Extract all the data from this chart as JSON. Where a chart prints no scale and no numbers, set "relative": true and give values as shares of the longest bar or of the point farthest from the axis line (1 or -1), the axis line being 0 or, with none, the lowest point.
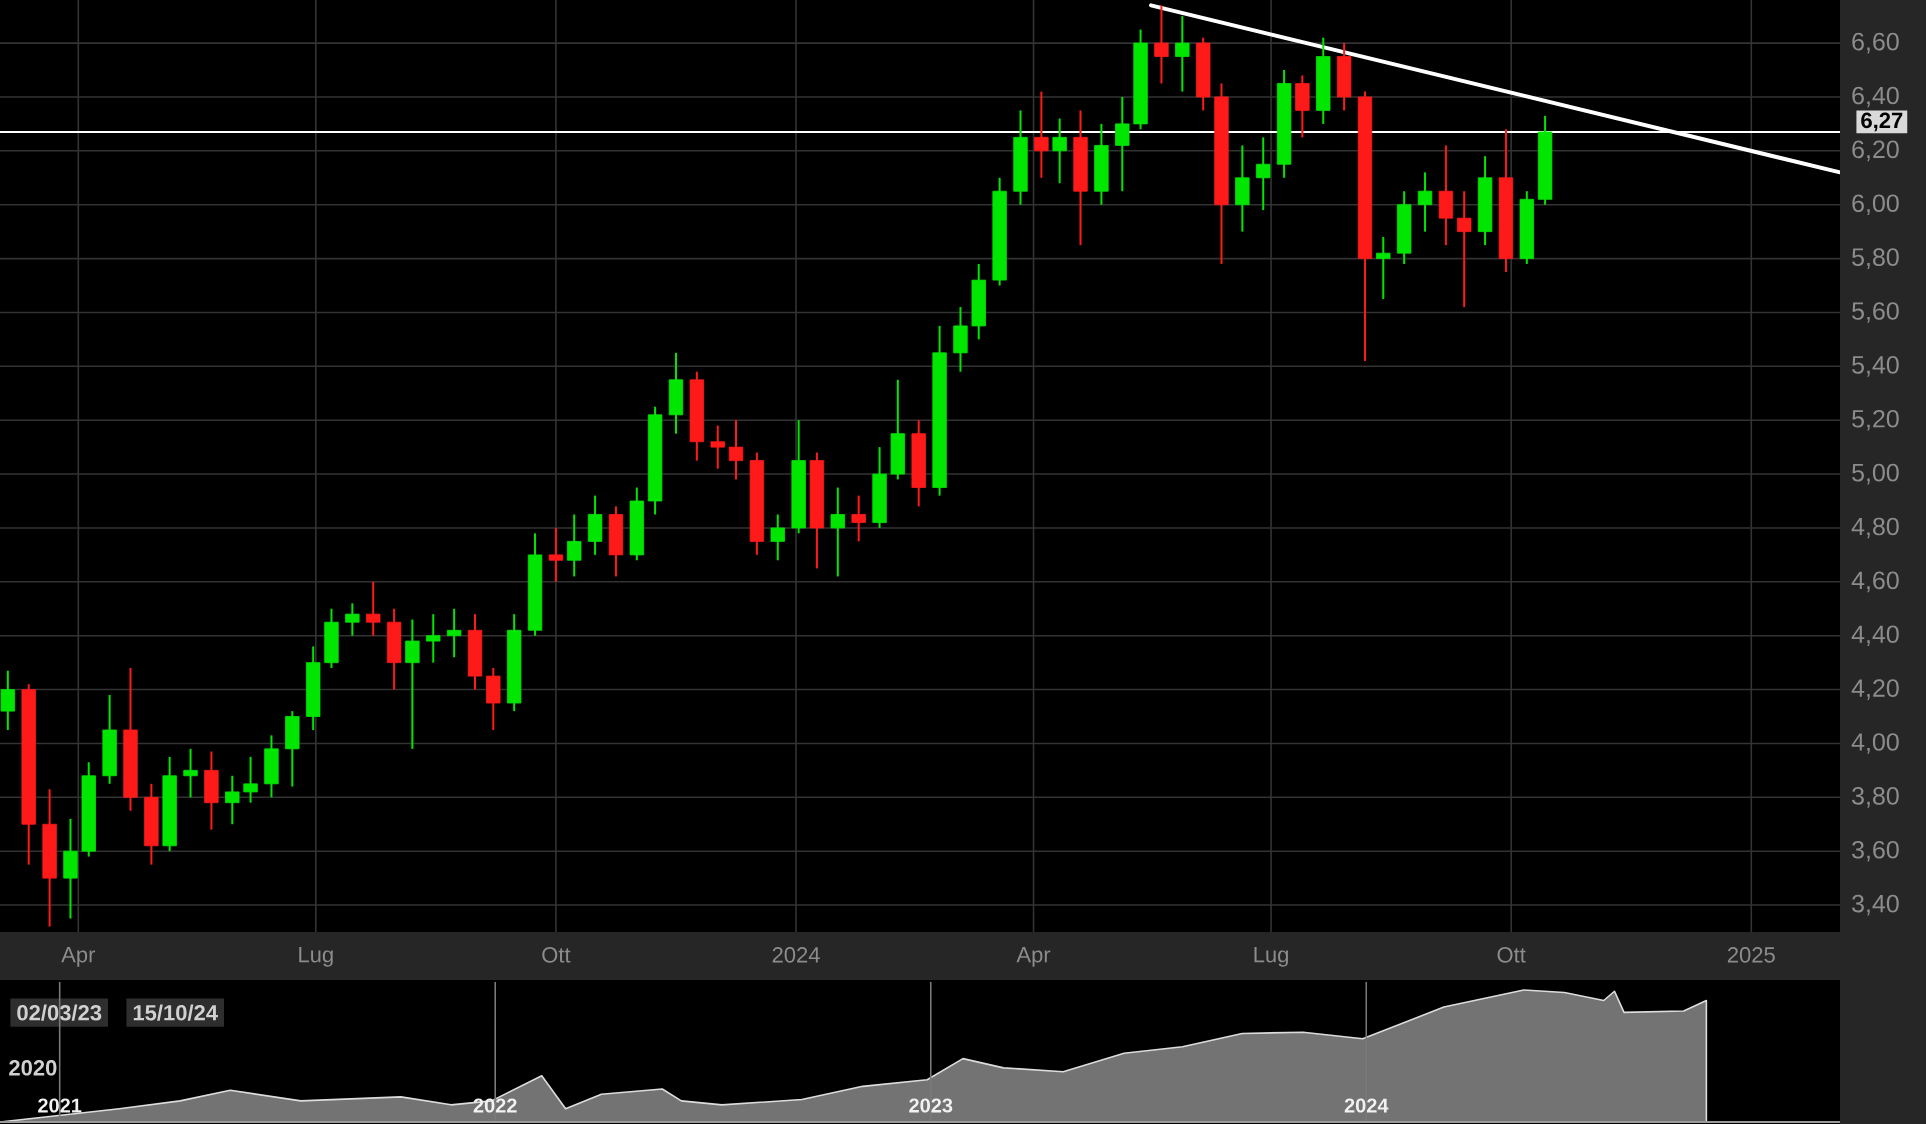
{
  "chart_data": [
    {
      "type": "candlestick",
      "x": [
        "2023-03-05",
        "2023-03-13",
        "2023-03-21",
        "2023-03-29",
        "2023-04-05",
        "2023-04-13",
        "2023-04-21",
        "2023-04-29",
        "2023-05-06",
        "2023-05-14",
        "2023-05-22",
        "2023-05-30",
        "2023-06-06",
        "2023-06-14",
        "2023-06-22",
        "2023-06-30",
        "2023-07-07",
        "2023-07-15",
        "2023-07-23",
        "2023-07-31",
        "2023-08-07",
        "2023-08-15",
        "2023-08-23",
        "2023-08-31",
        "2023-09-07",
        "2023-09-15",
        "2023-09-23",
        "2023-10-01",
        "2023-10-08",
        "2023-10-16",
        "2023-10-24",
        "2023-11-01",
        "2023-11-08",
        "2023-11-16",
        "2023-11-24",
        "2023-12-02",
        "2023-12-09",
        "2023-12-17",
        "2023-12-25",
        "2024-01-02",
        "2024-01-09",
        "2024-01-17",
        "2024-01-25",
        "2024-02-02",
        "2024-02-09",
        "2024-02-17",
        "2024-02-25",
        "2024-03-04",
        "2024-03-11",
        "2024-03-19",
        "2024-03-27",
        "2024-04-04",
        "2024-04-11",
        "2024-04-19",
        "2024-04-27",
        "2024-05-05",
        "2024-05-12",
        "2024-05-20",
        "2024-05-28",
        "2024-06-05",
        "2024-06-12",
        "2024-06-20",
        "2024-06-28",
        "2024-07-06",
        "2024-07-13",
        "2024-07-21",
        "2024-07-29",
        "2024-08-06",
        "2024-08-13",
        "2024-08-21",
        "2024-08-29",
        "2024-09-06",
        "2024-09-13",
        "2024-09-21",
        "2024-09-29",
        "2024-10-07",
        "2024-10-14"
      ],
      "ohlc": [
        [
          4.12,
          4.27,
          4.05,
          4.2
        ],
        [
          4.2,
          4.22,
          3.55,
          3.7
        ],
        [
          3.7,
          3.83,
          3.32,
          3.5
        ],
        [
          3.5,
          3.72,
          3.35,
          3.6
        ],
        [
          3.6,
          3.93,
          3.58,
          3.88
        ],
        [
          3.88,
          4.18,
          3.85,
          4.05
        ],
        [
          4.05,
          4.28,
          3.75,
          3.8
        ],
        [
          3.8,
          3.85,
          3.55,
          3.62
        ],
        [
          3.62,
          3.95,
          3.6,
          3.88
        ],
        [
          3.88,
          3.98,
          3.8,
          3.9
        ],
        [
          3.9,
          3.97,
          3.68,
          3.78
        ],
        [
          3.78,
          3.88,
          3.7,
          3.82
        ],
        [
          3.82,
          3.95,
          3.78,
          3.85
        ],
        [
          3.85,
          4.03,
          3.8,
          3.98
        ],
        [
          3.98,
          4.12,
          3.84,
          4.1
        ],
        [
          4.1,
          4.36,
          4.05,
          4.3
        ],
        [
          4.3,
          4.5,
          4.28,
          4.45
        ],
        [
          4.45,
          4.52,
          4.4,
          4.48
        ],
        [
          4.48,
          4.6,
          4.4,
          4.45
        ],
        [
          4.45,
          4.5,
          4.2,
          4.3
        ],
        [
          4.3,
          4.46,
          3.98,
          4.38
        ],
        [
          4.38,
          4.48,
          4.3,
          4.4
        ],
        [
          4.4,
          4.5,
          4.32,
          4.42
        ],
        [
          4.42,
          4.48,
          4.2,
          4.25
        ],
        [
          4.25,
          4.28,
          4.05,
          4.15
        ],
        [
          4.15,
          4.48,
          4.12,
          4.42
        ],
        [
          4.42,
          4.78,
          4.4,
          4.7
        ],
        [
          4.7,
          4.8,
          4.6,
          4.68
        ],
        [
          4.68,
          4.85,
          4.62,
          4.75
        ],
        [
          4.75,
          4.92,
          4.7,
          4.85
        ],
        [
          4.85,
          4.88,
          4.62,
          4.7
        ],
        [
          4.7,
          4.95,
          4.68,
          4.9
        ],
        [
          4.9,
          5.25,
          4.85,
          5.22
        ],
        [
          5.22,
          5.45,
          5.15,
          5.35
        ],
        [
          5.35,
          5.38,
          5.05,
          5.12
        ],
        [
          5.12,
          5.18,
          5.02,
          5.1
        ],
        [
          5.1,
          5.2,
          4.98,
          5.05
        ],
        [
          5.05,
          5.08,
          4.7,
          4.75
        ],
        [
          4.75,
          4.85,
          4.68,
          4.8
        ],
        [
          4.8,
          5.2,
          4.78,
          5.05
        ],
        [
          5.05,
          5.08,
          4.65,
          4.8
        ],
        [
          4.8,
          4.95,
          4.62,
          4.85
        ],
        [
          4.85,
          4.92,
          4.75,
          4.82
        ],
        [
          4.82,
          5.1,
          4.8,
          5.0
        ],
        [
          5.0,
          5.35,
          4.98,
          5.15
        ],
        [
          5.15,
          5.2,
          4.88,
          4.95
        ],
        [
          4.95,
          5.55,
          4.92,
          5.45
        ],
        [
          5.45,
          5.62,
          5.38,
          5.55
        ],
        [
          5.55,
          5.78,
          5.5,
          5.72
        ],
        [
          5.72,
          6.1,
          5.7,
          6.05
        ],
        [
          6.05,
          6.35,
          6.0,
          6.25
        ],
        [
          6.25,
          6.42,
          6.1,
          6.2
        ],
        [
          6.2,
          6.32,
          6.08,
          6.25
        ],
        [
          6.25,
          6.35,
          5.85,
          6.05
        ],
        [
          6.05,
          6.3,
          6.0,
          6.22
        ],
        [
          6.22,
          6.4,
          6.05,
          6.3
        ],
        [
          6.3,
          6.65,
          6.28,
          6.6
        ],
        [
          6.6,
          6.74,
          6.45,
          6.55
        ],
        [
          6.55,
          6.7,
          6.42,
          6.6
        ],
        [
          6.6,
          6.62,
          6.35,
          6.4
        ],
        [
          6.4,
          6.45,
          5.78,
          6.0
        ],
        [
          6.0,
          6.22,
          5.9,
          6.1
        ],
        [
          6.1,
          6.25,
          5.98,
          6.15
        ],
        [
          6.15,
          6.5,
          6.1,
          6.45
        ],
        [
          6.45,
          6.48,
          6.25,
          6.35
        ],
        [
          6.35,
          6.62,
          6.3,
          6.55
        ],
        [
          6.55,
          6.6,
          6.35,
          6.4
        ],
        [
          6.4,
          6.42,
          5.42,
          5.8
        ],
        [
          5.8,
          5.88,
          5.65,
          5.82
        ],
        [
          5.82,
          6.05,
          5.78,
          6.0
        ],
        [
          6.0,
          6.12,
          5.9,
          6.05
        ],
        [
          6.05,
          6.22,
          5.85,
          5.95
        ],
        [
          5.95,
          6.05,
          5.62,
          5.9
        ],
        [
          5.9,
          6.18,
          5.85,
          6.1
        ],
        [
          6.1,
          6.28,
          5.75,
          5.8
        ],
        [
          5.8,
          6.05,
          5.78,
          6.02
        ],
        [
          6.02,
          6.33,
          6.0,
          6.27
        ]
      ],
      "colors": [
        "#00e600",
        "#ff1a1a",
        "#ff1a1a",
        "#00e600",
        "#00e600",
        "#00e600",
        "#ff1a1a",
        "#ff1a1a",
        "#00e600",
        "#00e600",
        "#ff1a1a",
        "#00e600",
        "#00e600",
        "#00e600",
        "#00e600",
        "#00e600",
        "#00e600",
        "#00e600",
        "#ff1a1a",
        "#ff1a1a",
        "#00e600",
        "#00e600",
        "#00e600",
        "#ff1a1a",
        "#ff1a1a",
        "#00e600",
        "#00e600",
        "#ff1a1a",
        "#00e600",
        "#00e600",
        "#ff1a1a",
        "#00e600",
        "#00e600",
        "#00e600",
        "#ff1a1a",
        "#ff1a1a",
        "#ff1a1a",
        "#ff1a1a",
        "#00e600",
        "#00e600",
        "#ff1a1a",
        "#00e600",
        "#ff1a1a",
        "#00e600",
        "#00e600",
        "#ff1a1a",
        "#00e600",
        "#00e600",
        "#00e600",
        "#00e600",
        "#00e600",
        "#ff1a1a",
        "#00e600",
        "#ff1a1a",
        "#00e600",
        "#00e600",
        "#00e600",
        "#ff1a1a",
        "#00e600",
        "#ff1a1a",
        "#ff1a1a",
        "#00e600",
        "#00e600",
        "#00e600",
        "#ff1a1a",
        "#00e600",
        "#ff1a1a",
        "#ff1a1a",
        "#00e600",
        "#00e600",
        "#00e600",
        "#ff1a1a",
        "#ff1a1a",
        "#00e600",
        "#ff1a1a",
        "#00e600",
        "#00e600"
      ],
      "series": [
        {
          "type": "line",
          "color": "#ffffff",
          "x": [
            "2024-05-16",
            "2025-02-04"
          ],
          "values": [
            6.74,
            6.12
          ]
        }
      ],
      "xlim": [
        "2023-03-02",
        "2025-02-04"
      ],
      "xticks": [
        {
          "value": "2023-04-01",
          "label": "Apr"
        },
        {
          "value": "2023-07-01",
          "label": "Lug"
        },
        {
          "value": "2023-10-01",
          "label": "Ott"
        },
        {
          "value": "2024-01-01",
          "label": "2024"
        },
        {
          "value": "2024-04-01",
          "label": "Apr"
        },
        {
          "value": "2024-07-01",
          "label": "Lug"
        },
        {
          "value": "2024-10-01",
          "label": "Ott"
        },
        {
          "value": "2025-01-01",
          "label": "2025"
        }
      ],
      "ylim": [
        3.3,
        6.76
      ],
      "yticks": [
        {
          "value": 3.4,
          "label": "3,40"
        },
        {
          "value": 3.6,
          "label": "3,60"
        },
        {
          "value": 3.8,
          "label": "3,80"
        },
        {
          "value": 4.0,
          "label": "4,00"
        },
        {
          "value": 4.2,
          "label": "4,20"
        },
        {
          "value": 4.4,
          "label": "4,40"
        },
        {
          "value": 4.6,
          "label": "4,60"
        },
        {
          "value": 4.8,
          "label": "4,80"
        },
        {
          "value": 5.0,
          "label": "5,00"
        },
        {
          "value": 5.2,
          "label": "5,20"
        },
        {
          "value": 5.4,
          "label": "5,40"
        },
        {
          "value": 5.6,
          "label": "5,60"
        },
        {
          "value": 5.8,
          "label": "5,80"
        },
        {
          "value": 6.0,
          "label": "6,00"
        },
        {
          "value": 6.2,
          "label": "6,20"
        },
        {
          "value": 6.4,
          "label": "6,40"
        },
        {
          "value": 6.6,
          "label": "6,60"
        }
      ],
      "grid": true,
      "ref_lines": [
        {
          "axis": "y",
          "value": 6.27,
          "label": "6,27",
          "color": "#ffffff"
        }
      ]
    },
    {
      "type": "area",
      "relative": true,
      "x": [
        "2020-11-12",
        "2021-02-20",
        "2021-04-12",
        "2021-05-24",
        "2021-07-22",
        "2021-10-14",
        "2021-11-25",
        "2021-12-29",
        "2022-02-09",
        "2022-03-01",
        "2022-03-31",
        "2022-05-21",
        "2022-06-06",
        "2022-07-10",
        "2022-09-15",
        "2022-11-05",
        "2022-12-29",
        "2023-01-28",
        "2023-03-03",
        "2023-04-22",
        "2023-06-12",
        "2023-07-31",
        "2023-09-19",
        "2023-11-09",
        "2023-12-29",
        "2024-02-01",
        "2024-03-06",
        "2024-05-12",
        "2024-06-15",
        "2024-07-18",
        "2024-07-27",
        "2024-08-04",
        "2024-09-23",
        "2024-10-12"
      ],
      "series": [
        {
          "color": "#737373",
          "values": [
            0,
            0.1,
            0.16,
            0.24,
            0.16,
            0.19,
            0.13,
            0.16,
            0.35,
            0.1,
            0.21,
            0.25,
            0.16,
            0.13,
            0.17,
            0.27,
            0.32,
            0.48,
            0.41,
            0.38,
            0.52,
            0.57,
            0.67,
            0.68,
            0.63,
            0.75,
            0.87,
            1,
            0.98,
            0.92,
            0.99,
            0.83,
            0.84,
            0.92
          ]
        }
      ],
      "xlim": [
        "2020-11-12",
        "2025-02-01"
      ],
      "xticks": [
        {
          "value": "2021-01-01",
          "label": "2021"
        },
        {
          "value": "2022-01-01",
          "label": "2022"
        },
        {
          "value": "2023-01-01",
          "label": "2023"
        },
        {
          "value": "2024-01-01",
          "label": "2024"
        }
      ],
      "grid": "x",
      "tick_labels": "x",
      "annotations": [
        "2020",
        "02/03/23",
        "15/10/24"
      ]
    }
  ]
}
